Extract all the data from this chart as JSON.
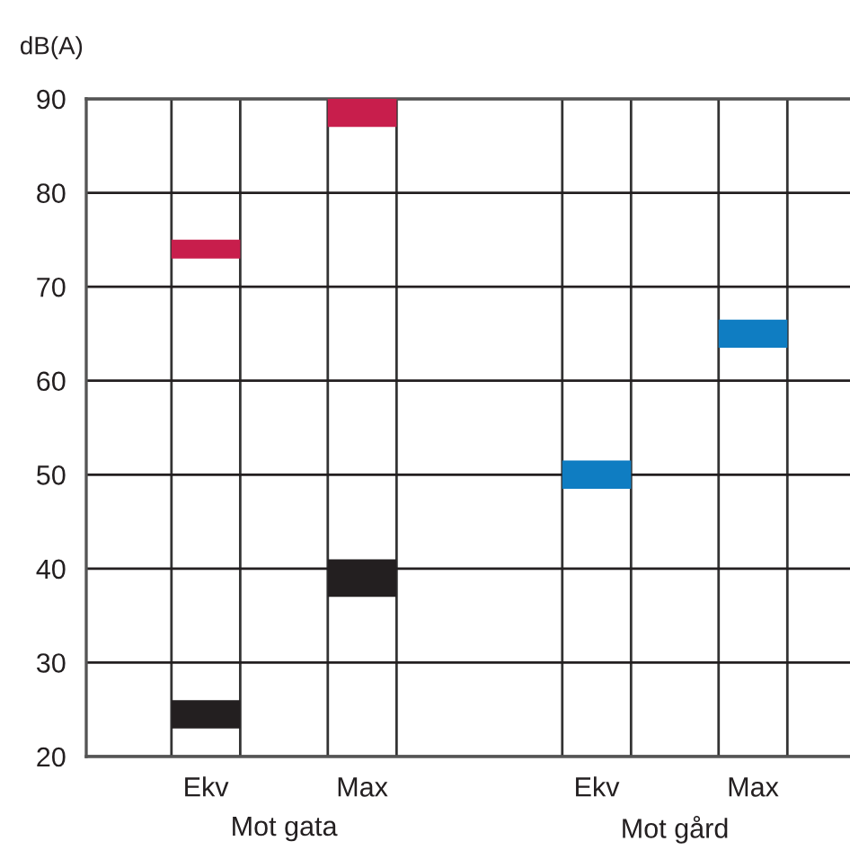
{
  "chart_data": {
    "type": "bar",
    "ylabel": "dB(A)",
    "categories": [
      "Ekv",
      null,
      "Max",
      null,
      null,
      "Ekv",
      null,
      "Max"
    ],
    "series": [
      {
        "color": "#c81e4c",
        "base": [
          73,
          null,
          87,
          null,
          null,
          null,
          null,
          null
        ],
        "values": [
          2,
          null,
          3,
          null,
          null,
          null,
          null,
          null
        ]
      },
      {
        "color": "#231f20",
        "base": [
          23,
          null,
          37,
          null,
          null,
          null,
          null,
          null
        ],
        "values": [
          3,
          null,
          4,
          null,
          null,
          null,
          null,
          null
        ]
      },
      {
        "color": "#0f7dc2",
        "base": [
          null,
          null,
          null,
          null,
          null,
          48.5,
          null,
          63.5
        ],
        "values": [
          null,
          null,
          null,
          null,
          null,
          3,
          null,
          3
        ]
      }
    ],
    "ylim": [
      20,
      90
    ],
    "yticks": [
      20,
      30,
      40,
      50,
      60,
      70,
      80,
      90
    ],
    "grid": true,
    "annotations": [
      "Mot gata",
      "Mot gård"
    ]
  }
}
